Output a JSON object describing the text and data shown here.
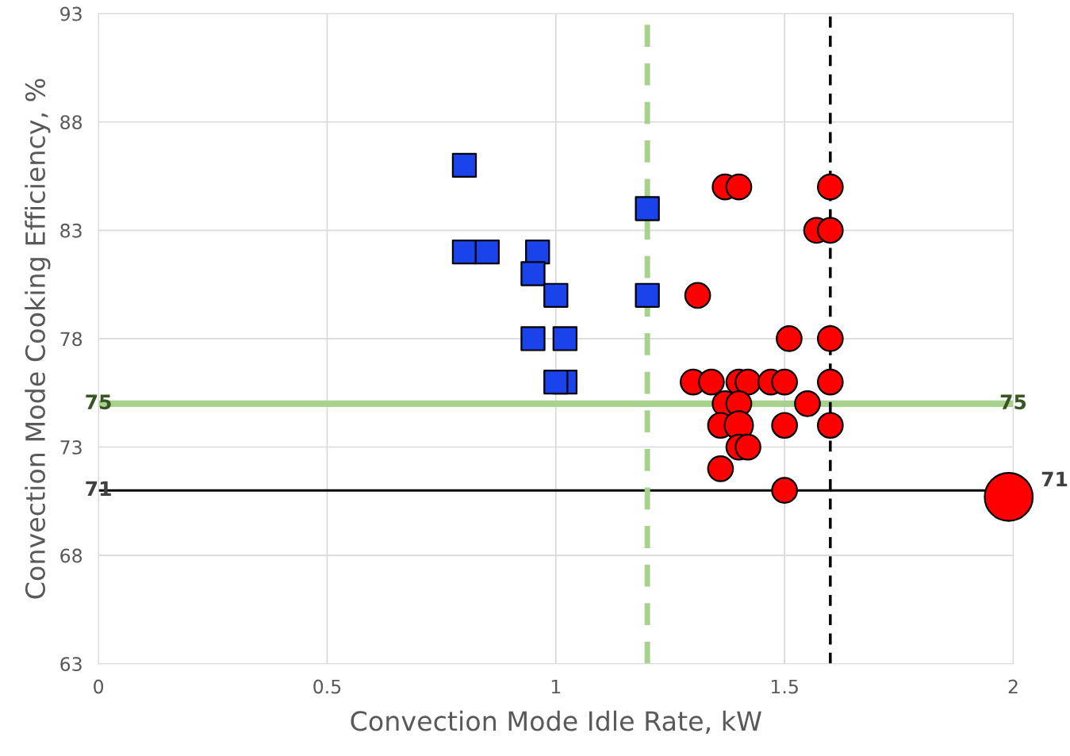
{
  "chart_data": {
    "type": "scatter",
    "xlabel": "Convection Mode Idle Rate, kW",
    "ylabel": "Convection Mode Cooking Efficiency, %",
    "xlim": [
      0,
      2
    ],
    "xticks": [
      0,
      0.5,
      1,
      1.5,
      2
    ],
    "ylim": [
      63,
      93
    ],
    "yticks": [
      63,
      68,
      73,
      78,
      83,
      88,
      93
    ],
    "grid": true,
    "legend": false,
    "series": [
      {
        "marker": "square",
        "color": "#1a43ec",
        "x": [
          0.8,
          1.2,
          0.8,
          0.85,
          0.96,
          0.95,
          1.0,
          1.2,
          0.95,
          1.02,
          1.02,
          1.0
        ],
        "values": [
          86,
          84,
          82,
          82,
          82,
          81,
          80,
          80,
          78,
          78,
          76,
          76
        ]
      },
      {
        "type": "bubble",
        "marker": "circle",
        "color": "#ff0000",
        "x": [
          1.37,
          1.4,
          1.6,
          1.57,
          1.6,
          1.31,
          1.51,
          1.6,
          1.3,
          1.34,
          1.4,
          1.42,
          1.47,
          1.5,
          1.6,
          1.37,
          1.4,
          1.55,
          1.36,
          1.4,
          1.5,
          1.6,
          1.4,
          1.42,
          1.36,
          1.5,
          1.99
        ],
        "values": [
          85,
          85,
          85,
          83,
          83,
          80,
          78,
          78,
          76,
          76,
          76,
          76,
          76,
          76,
          76,
          75,
          75,
          75,
          74,
          74,
          74,
          74,
          73,
          73,
          72,
          71,
          70.7
        ],
        "sizes": [
          0.27,
          0.27,
          0.27,
          0.27,
          0.27,
          0.27,
          0.27,
          0.27,
          0.27,
          0.27,
          0.27,
          0.27,
          0.27,
          0.27,
          0.27,
          0.27,
          0.27,
          0.27,
          0.27,
          0.35,
          0.27,
          0.27,
          0.27,
          0.27,
          0.27,
          0.27,
          1
        ]
      }
    ],
    "ref_lines": [
      {
        "axis": "y",
        "value": 75,
        "label": "75",
        "color": "#a9d18e",
        "line_style": "solid"
      },
      {
        "axis": "y",
        "value": 71,
        "label": "71",
        "color": "#000000",
        "line_style": "solid"
      },
      {
        "axis": "x",
        "value": 1.2,
        "color": "#a9d18e",
        "line_style": "dashed"
      },
      {
        "axis": "x",
        "value": 1.6,
        "color": "#000000",
        "line_style": "dashed"
      }
    ]
  }
}
